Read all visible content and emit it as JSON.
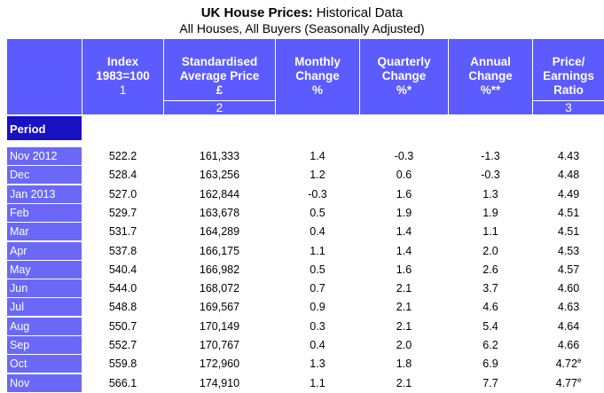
{
  "title": {
    "bold": "UK House Prices:",
    "rest": " Historical Data",
    "subtitle": "All Houses, All Buyers (Seasonally Adjusted)"
  },
  "period_label": "Period",
  "columns": [
    {
      "lines": [
        "Index",
        "1983=100",
        "1"
      ],
      "note": ""
    },
    {
      "lines": [
        "Standardised",
        "Average Price",
        "£"
      ],
      "note": "2"
    },
    {
      "lines": [
        "Monthly",
        "Change",
        "%"
      ],
      "note": ""
    },
    {
      "lines": [
        "Quarterly",
        "Change",
        "%*"
      ],
      "note": ""
    },
    {
      "lines": [
        "Annual",
        "Change",
        "%**"
      ],
      "note": ""
    },
    {
      "lines": [
        "Price/",
        "Earnings",
        "Ratio"
      ],
      "note": "3"
    }
  ],
  "rows": [
    {
      "period": "Nov 2012",
      "index": "522.2",
      "price": "161,333",
      "monthly": "1.4",
      "quarterly": "-0.3",
      "annual": "-1.3",
      "ratio": "4.43",
      "ratio_sup": ""
    },
    {
      "period": "Dec",
      "index": "528.4",
      "price": "163,256",
      "monthly": "1.2",
      "quarterly": "0.6",
      "annual": "-0.3",
      "ratio": "4.48",
      "ratio_sup": ""
    },
    {
      "period": "Jan 2013",
      "index": "527.0",
      "price": "162,844",
      "monthly": "-0.3",
      "quarterly": "1.6",
      "annual": "1.3",
      "ratio": "4.49",
      "ratio_sup": ""
    },
    {
      "period": "Feb",
      "index": "529.7",
      "price": "163,678",
      "monthly": "0.5",
      "quarterly": "1.9",
      "annual": "1.9",
      "ratio": "4.51",
      "ratio_sup": ""
    },
    {
      "period": "Mar",
      "index": "531.7",
      "price": "164,289",
      "monthly": "0.4",
      "quarterly": "1.4",
      "annual": "1.1",
      "ratio": "4.51",
      "ratio_sup": ""
    },
    {
      "period": "Apr",
      "index": "537.8",
      "price": "166,175",
      "monthly": "1.1",
      "quarterly": "1.4",
      "annual": "2.0",
      "ratio": "4.53",
      "ratio_sup": ""
    },
    {
      "period": "May",
      "index": "540.4",
      "price": "166,982",
      "monthly": "0.5",
      "quarterly": "1.6",
      "annual": "2.6",
      "ratio": "4.57",
      "ratio_sup": ""
    },
    {
      "period": "Jun",
      "index": "544.0",
      "price": "168,072",
      "monthly": "0.7",
      "quarterly": "2.1",
      "annual": "3.7",
      "ratio": "4.60",
      "ratio_sup": ""
    },
    {
      "period": "Jul",
      "index": "548.8",
      "price": "169,567",
      "monthly": "0.9",
      "quarterly": "2.1",
      "annual": "4.6",
      "ratio": "4.63",
      "ratio_sup": ""
    },
    {
      "period": "Aug",
      "index": "550.7",
      "price": "170,149",
      "monthly": "0.3",
      "quarterly": "2.1",
      "annual": "5.4",
      "ratio": "4.64",
      "ratio_sup": ""
    },
    {
      "period": "Sep",
      "index": "552.7",
      "price": "170,767",
      "monthly": "0.4",
      "quarterly": "2.0",
      "annual": "6.2",
      "ratio": "4.66",
      "ratio_sup": ""
    },
    {
      "period": "Oct",
      "index": "559.8",
      "price": "172,960",
      "monthly": "1.3",
      "quarterly": "1.8",
      "annual": "6.9",
      "ratio": "4.72",
      "ratio_sup": "e"
    },
    {
      "period": "Nov",
      "index": "566.1",
      "price": "174,910",
      "monthly": "1.1",
      "quarterly": "2.1",
      "annual": "7.7",
      "ratio": "4.77",
      "ratio_sup": "e"
    }
  ],
  "colors": {
    "header_band": "#5b5bff",
    "period_header": "#1a10c4",
    "row_label": "#6b68f8"
  }
}
